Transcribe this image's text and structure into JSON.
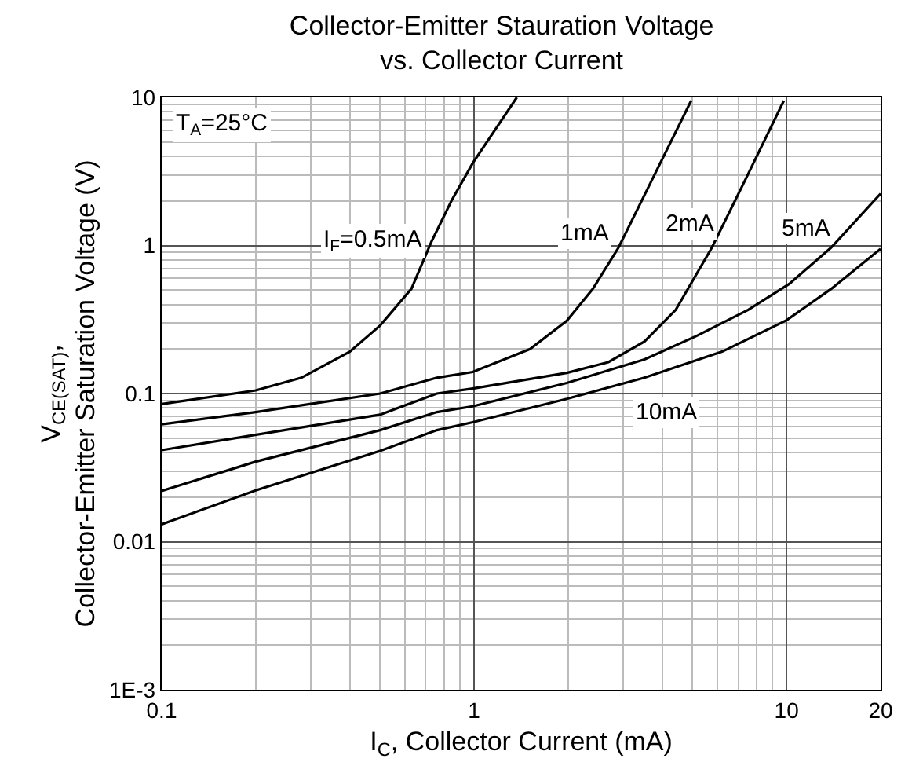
{
  "chart_data": {
    "type": "line",
    "title": "Collector-Emitter Stauration Voltage\nvs. Collector Current",
    "xlabel": "I$_{C}$, Collector Current (mA)",
    "ylabel": "V$_{CE(SAT)}$,\nCollector-Emitter Saturation Voltage (V)",
    "log": "xy",
    "xlim": [
      0.1,
      20
    ],
    "xticks": [
      0.1,
      1,
      10,
      20
    ],
    "ylim": [
      0.001,
      10
    ],
    "yticks": [
      {
        "value": 0.001,
        "label": "1E-3"
      },
      0.01,
      0.1,
      1,
      10
    ],
    "grid": true,
    "marker": "none",
    "line_style": "solid",
    "series": [
      {
        "color": "#000000",
        "x": [
          0.1,
          0.2,
          0.28,
          0.4,
          0.5,
          0.63,
          0.73,
          0.85,
          0.99,
          1.37
        ],
        "values": [
          0.085,
          0.105,
          0.128,
          0.192,
          0.288,
          0.51,
          1.06,
          2.04,
          3.6,
          10
        ]
      },
      {
        "color": "#000000",
        "x": [
          0.1,
          0.2,
          0.5,
          0.76,
          0.99,
          1.51,
          1.98,
          2.4,
          2.9,
          3.65,
          4.95
        ],
        "values": [
          0.062,
          0.075,
          0.1,
          0.128,
          0.14,
          0.2,
          0.31,
          0.51,
          0.97,
          2.59,
          9.5
        ]
      },
      {
        "color": "#000000",
        "x": [
          0.1,
          0.5,
          0.76,
          0.99,
          1.98,
          2.69,
          3.51,
          4.42,
          5.77,
          7.26,
          9.8
        ],
        "values": [
          0.0415,
          0.072,
          0.1,
          0.108,
          0.138,
          0.163,
          0.225,
          0.368,
          0.97,
          2.59,
          9.5
        ]
      },
      {
        "color": "#000000",
        "x": [
          0.1,
          0.2,
          0.5,
          0.76,
          0.99,
          1.98,
          3.51,
          5.15,
          7.54,
          10.2,
          13.9,
          20
        ],
        "values": [
          0.022,
          0.0347,
          0.0566,
          0.075,
          0.082,
          0.118,
          0.17,
          0.245,
          0.368,
          0.55,
          0.97,
          2.24
        ]
      },
      {
        "color": "#000000",
        "x": [
          0.1,
          0.2,
          0.5,
          0.76,
          0.99,
          1.98,
          3.51,
          6.22,
          10,
          13.9,
          20
        ],
        "values": [
          0.0131,
          0.0222,
          0.041,
          0.0566,
          0.064,
          0.092,
          0.128,
          0.192,
          0.313,
          0.51,
          0.95
        ]
      }
    ],
    "annotations": [
      "T$_{A}$=25°C",
      {
        "text": "I$_{F}$=0.5mA",
        "x": 0.73,
        "y": 1.06
      },
      {
        "text": "1mA",
        "x": 2.26,
        "y": 1.2
      },
      {
        "text": "2mA",
        "x": 4.9,
        "y": 1.4
      },
      {
        "text": "5mA",
        "x": 11.5,
        "y": 1.3
      },
      {
        "text": "10mA",
        "x": 4.1,
        "y": 0.075
      }
    ]
  }
}
